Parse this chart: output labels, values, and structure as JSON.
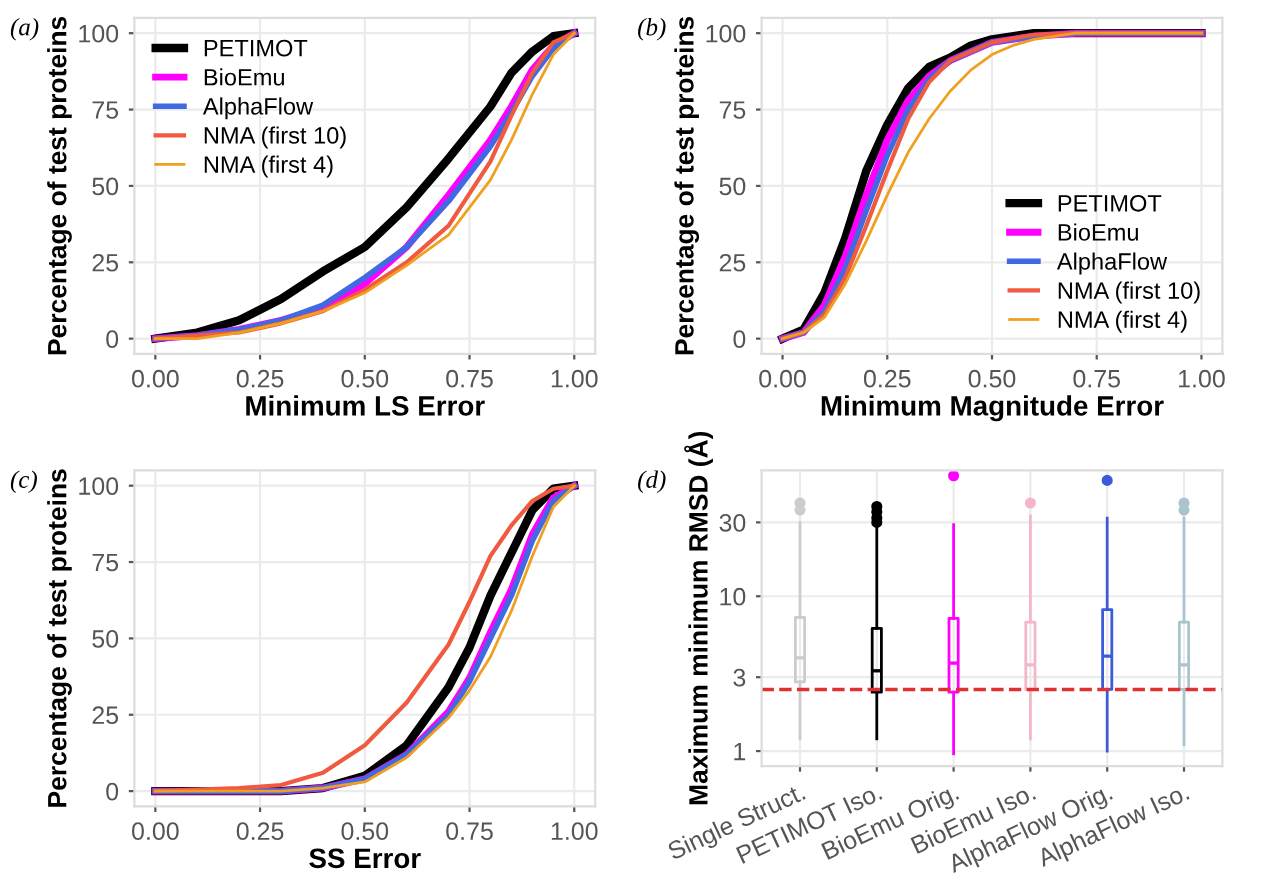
{
  "chart_data": [
    {
      "type": "line",
      "annotations": [
        "(a)"
      ],
      "xlabel": "Minimum LS Error",
      "ylabel": "Percentage of test proteins",
      "xlim": [
        -0.05,
        1.05
      ],
      "ylim": [
        -5,
        105
      ],
      "xticks": [
        {
          "value": 0,
          "label": "0.00"
        },
        {
          "value": 0.25,
          "label": "0.25"
        },
        {
          "value": 0.5,
          "label": "0.50"
        },
        {
          "value": 0.75,
          "label": "0.75"
        },
        {
          "value": 1,
          "label": "1.00"
        }
      ],
      "yticks": [
        0,
        25,
        50,
        75,
        100
      ],
      "grid": true,
      "legend": "top left",
      "series": [
        {
          "name": "PETIMOT",
          "color": "#000000",
          "x": [
            0,
            0.1,
            0.2,
            0.3,
            0.4,
            0.5,
            0.6,
            0.7,
            0.8,
            0.85,
            0.9,
            0.95,
            1
          ],
          "values": [
            0,
            2,
            6,
            13,
            22,
            30,
            43,
            59,
            76,
            87,
            94,
            99,
            100
          ]
        },
        {
          "name": "BioEmu",
          "color": "#ff00ff",
          "x": [
            0,
            0.1,
            0.2,
            0.3,
            0.4,
            0.5,
            0.6,
            0.7,
            0.8,
            0.85,
            0.9,
            0.95,
            1
          ],
          "values": [
            0,
            1,
            3,
            6,
            10,
            18,
            30,
            47,
            65,
            76,
            88,
            96,
            100
          ]
        },
        {
          "name": "AlphaFlow",
          "color": "#4169e1",
          "x": [
            0,
            0.1,
            0.2,
            0.3,
            0.4,
            0.5,
            0.6,
            0.7,
            0.8,
            0.85,
            0.9,
            0.95,
            1
          ],
          "values": [
            0,
            1,
            3,
            6,
            11,
            20,
            30,
            45,
            63,
            74,
            86,
            95,
            100
          ]
        },
        {
          "name": "NMA (first 10)",
          "color": "#f05a40",
          "x": [
            0,
            0.1,
            0.2,
            0.3,
            0.4,
            0.5,
            0.6,
            0.7,
            0.8,
            0.85,
            0.9,
            0.95,
            1
          ],
          "values": [
            0,
            1,
            2,
            5,
            9,
            16,
            25,
            37,
            58,
            73,
            87,
            97,
            100
          ]
        },
        {
          "name": "NMA (first 4)",
          "color": "#f0a020",
          "x": [
            0,
            0.1,
            0.2,
            0.3,
            0.4,
            0.5,
            0.6,
            0.7,
            0.8,
            0.85,
            0.9,
            0.95,
            1
          ],
          "values": [
            0,
            0,
            2,
            5,
            9,
            15,
            24,
            34,
            52,
            65,
            80,
            93,
            100
          ]
        }
      ]
    },
    {
      "type": "line",
      "annotations": [
        "(b)"
      ],
      "xlabel": "Minimum Magnitude Error",
      "ylabel": "Percentage of test proteins",
      "xlim": [
        -0.05,
        1.05
      ],
      "ylim": [
        -5,
        105
      ],
      "xticks": [
        {
          "value": 0,
          "label": "0.00"
        },
        {
          "value": 0.25,
          "label": "0.25"
        },
        {
          "value": 0.5,
          "label": "0.50"
        },
        {
          "value": 0.75,
          "label": "0.75"
        },
        {
          "value": 1,
          "label": "1.00"
        }
      ],
      "yticks": [
        0,
        25,
        50,
        75,
        100
      ],
      "grid": true,
      "legend": "bottom right",
      "series": [
        {
          "name": "PETIMOT",
          "color": "#000000",
          "x": [
            0,
            0.05,
            0.1,
            0.15,
            0.2,
            0.25,
            0.3,
            0.35,
            0.4,
            0.45,
            0.5,
            0.6,
            1
          ],
          "values": [
            0,
            3,
            15,
            33,
            55,
            70,
            82,
            89,
            92,
            96,
            98,
            100,
            100
          ]
        },
        {
          "name": "BioEmu",
          "color": "#ff00ff",
          "x": [
            0,
            0.05,
            0.1,
            0.15,
            0.2,
            0.25,
            0.3,
            0.35,
            0.4,
            0.5,
            0.6,
            0.7,
            1
          ],
          "values": [
            0,
            2,
            11,
            27,
            47,
            65,
            78,
            86,
            91,
            97,
            99,
            100,
            100
          ]
        },
        {
          "name": "AlphaFlow",
          "color": "#4169e1",
          "x": [
            0,
            0.05,
            0.1,
            0.15,
            0.2,
            0.25,
            0.3,
            0.35,
            0.4,
            0.5,
            0.6,
            0.7,
            1
          ],
          "values": [
            0,
            2,
            9,
            23,
            42,
            60,
            75,
            85,
            91,
            97,
            99,
            100,
            100
          ]
        },
        {
          "name": "NMA (first 10)",
          "color": "#f05a40",
          "x": [
            0,
            0.05,
            0.1,
            0.15,
            0.2,
            0.25,
            0.3,
            0.35,
            0.4,
            0.5,
            0.6,
            0.7,
            1
          ],
          "values": [
            0,
            2,
            8,
            20,
            37,
            55,
            72,
            84,
            91,
            97,
            99.5,
            100,
            100
          ]
        },
        {
          "name": "NMA (first 4)",
          "color": "#f0a020",
          "x": [
            0,
            0.05,
            0.1,
            0.15,
            0.2,
            0.25,
            0.3,
            0.35,
            0.4,
            0.45,
            0.5,
            0.55,
            0.6,
            0.7,
            1
          ],
          "values": [
            0,
            2,
            7,
            18,
            32,
            47,
            61,
            72,
            81,
            88,
            93,
            96,
            98,
            100,
            100
          ]
        }
      ]
    },
    {
      "type": "line",
      "annotations": [
        "(c)"
      ],
      "xlabel": "SS Error",
      "ylabel": "Percentage of test proteins",
      "xlim": [
        -0.05,
        1.05
      ],
      "ylim": [
        -5,
        105
      ],
      "xticks": [
        {
          "value": 0,
          "label": "0.00"
        },
        {
          "value": 0.25,
          "label": "0.25"
        },
        {
          "value": 0.5,
          "label": "0.50"
        },
        {
          "value": 0.75,
          "label": "0.75"
        },
        {
          "value": 1,
          "label": "1.00"
        }
      ],
      "yticks": [
        0,
        25,
        50,
        75,
        100
      ],
      "grid": true,
      "series": [
        {
          "color": "#000000",
          "x": [
            0,
            0.3,
            0.4,
            0.5,
            0.6,
            0.7,
            0.75,
            0.8,
            0.85,
            0.9,
            0.95,
            1
          ],
          "values": [
            0,
            0,
            1,
            5,
            15,
            34,
            47,
            64,
            78,
            92,
            99,
            100
          ]
        },
        {
          "color": "#ff00ff",
          "x": [
            0,
            0.3,
            0.4,
            0.5,
            0.6,
            0.7,
            0.75,
            0.8,
            0.85,
            0.9,
            0.95,
            1
          ],
          "values": [
            0,
            0,
            1,
            4,
            12,
            26,
            37,
            52,
            66,
            84,
            96,
            100
          ]
        },
        {
          "color": "#4169e1",
          "x": [
            0,
            0.3,
            0.4,
            0.5,
            0.6,
            0.7,
            0.75,
            0.8,
            0.85,
            0.9,
            0.95,
            1
          ],
          "values": [
            0,
            0,
            1,
            4,
            12,
            25,
            36,
            50,
            64,
            82,
            95,
            100
          ]
        },
        {
          "color": "#f05a40",
          "x": [
            0,
            0.2,
            0.3,
            0.4,
            0.5,
            0.6,
            0.7,
            0.75,
            0.8,
            0.85,
            0.9,
            0.95,
            1
          ],
          "values": [
            0,
            1,
            2,
            6,
            15,
            29,
            48,
            62,
            77,
            87,
            95,
            99,
            100
          ]
        },
        {
          "color": "#f0a020",
          "x": [
            0,
            0.3,
            0.4,
            0.5,
            0.6,
            0.7,
            0.75,
            0.8,
            0.85,
            0.9,
            0.95,
            1
          ],
          "values": [
            0,
            0,
            1,
            3,
            11,
            24,
            33,
            44,
            59,
            77,
            93,
            100
          ]
        }
      ]
    },
    {
      "type": "box",
      "annotations": [
        "(d)"
      ],
      "ylabel": "Maximum minimum RMSD (Å)",
      "log": true,
      "ylim": [
        0.8,
        65
      ],
      "yticks": [
        1,
        3,
        10,
        30
      ],
      "grid": true,
      "categories": [
        "Single Struct.",
        "PETIMOT Iso.",
        "BioEmu Orig.",
        "BioEmu Iso.",
        "AlphaFlow Orig.",
        "AlphaFlow Iso."
      ],
      "colors": [
        "#cccccc",
        "#000000",
        "#ff00ff",
        "#f4b6c9",
        "#3b5bdb",
        "#a9c4cf"
      ],
      "ref_lines": [
        {
          "axis": "y",
          "value": 2.5,
          "color": "#e03030",
          "line_style": "dashed"
        }
      ],
      "boxes": [
        {
          "low": 1.2,
          "q1": 2.8,
          "median": 4.0,
          "q3": 7.3,
          "high": 30,
          "outliers": [
            36,
            40
          ]
        },
        {
          "low": 1.2,
          "q1": 2.4,
          "median": 3.3,
          "q3": 6.2,
          "high": 28,
          "outliers": [
            30,
            32,
            35,
            38
          ]
        },
        {
          "low": 0.96,
          "q1": 2.4,
          "median": 3.7,
          "q3": 7.2,
          "high": 29,
          "outliers": [
            60
          ]
        },
        {
          "low": 1.2,
          "q1": 2.5,
          "median": 3.6,
          "q3": 6.8,
          "high": 33,
          "outliers": [
            40
          ]
        },
        {
          "low": 1.0,
          "q1": 2.5,
          "median": 4.1,
          "q3": 8.2,
          "high": 32,
          "outliers": [
            56
          ]
        },
        {
          "low": 1.1,
          "q1": 2.5,
          "median": 3.6,
          "q3": 6.8,
          "high": 32,
          "outliers": [
            36,
            40
          ]
        }
      ]
    }
  ]
}
